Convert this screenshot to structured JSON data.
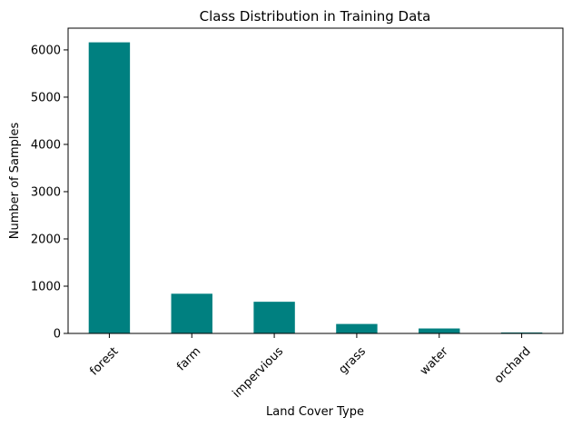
{
  "chart_data": {
    "type": "bar",
    "title": "Class Distribution in Training Data",
    "xlabel": "Land Cover Type",
    "ylabel": "Number of Samples",
    "categories": [
      "forest",
      "farm",
      "impervious",
      "grass",
      "water",
      "orchard"
    ],
    "values": [
      6160,
      840,
      670,
      200,
      105,
      20
    ],
    "ylim": [
      0,
      6460
    ],
    "yticks": [
      "0",
      "1000",
      "2000",
      "3000",
      "4000",
      "5000",
      "6000"
    ],
    "bar_color": "#008080",
    "grid": false,
    "legend": "none"
  }
}
